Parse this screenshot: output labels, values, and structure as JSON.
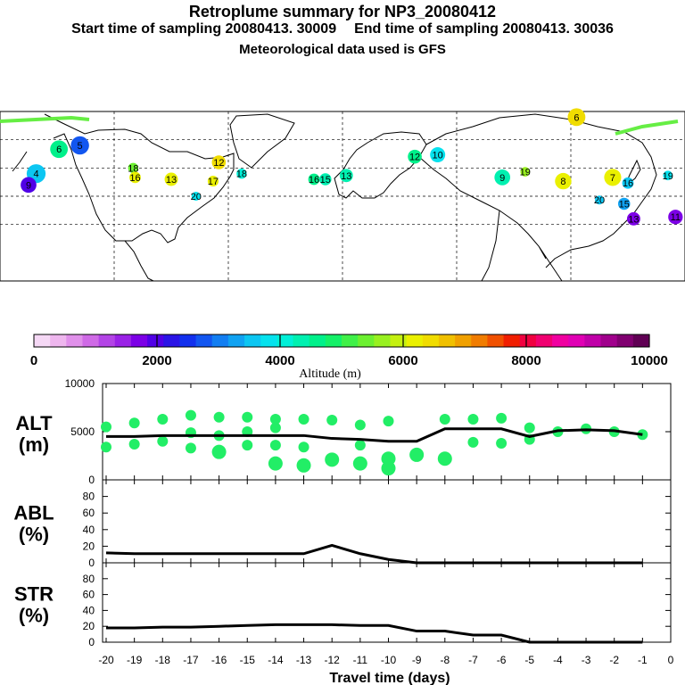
{
  "header": {
    "title": "Retroplume summary for NP3_20080412",
    "start_label": "Start time of sampling 20080413. 30009",
    "end_label": "End time of sampling 20080413. 30036",
    "met_label": "Meteorological data used is GFS"
  },
  "colorbar": {
    "colors": [
      "#f5d8f5",
      "#eeb6ee",
      "#e090ea",
      "#cf6ae6",
      "#b344e6",
      "#9a22e6",
      "#7c00e6",
      "#5000e6",
      "#2a14e6",
      "#1230ee",
      "#1256f0",
      "#127ef2",
      "#10a2f2",
      "#0cc6f2",
      "#06e2ee",
      "#00f0d8",
      "#00f0b0",
      "#00f08a",
      "#14f068",
      "#40f048",
      "#6cf030",
      "#98f020",
      "#c4f010",
      "#eaf000",
      "#f0dc00",
      "#f0c000",
      "#f0a000",
      "#f07c00",
      "#f05000",
      "#f01e00",
      "#f00040",
      "#f00070",
      "#f000a0",
      "#e000b4",
      "#c000a8",
      "#a0008c",
      "#800070",
      "#600054"
    ],
    "ticks": [
      0,
      2000,
      4000,
      6000,
      8000,
      10000
    ],
    "label": "Altitude (m)"
  },
  "map": {
    "labels": [
      {
        "text": "6",
        "lon": -149,
        "lat": 70
      },
      {
        "text": "5",
        "lon": -138,
        "lat": 72
      },
      {
        "text": "4",
        "lon": -161,
        "lat": 57
      },
      {
        "text": "9",
        "lon": -165,
        "lat": 51
      },
      {
        "text": "18",
        "lon": -110,
        "lat": 60
      },
      {
        "text": "16",
        "lon": -109,
        "lat": 55
      },
      {
        "text": "13",
        "lon": -90,
        "lat": 54
      },
      {
        "text": "12",
        "lon": -65,
        "lat": 63
      },
      {
        "text": "17",
        "lon": -68,
        "lat": 53
      },
      {
        "text": "20",
        "lon": -77,
        "lat": 45
      },
      {
        "text": "18",
        "lon": -53,
        "lat": 57
      },
      {
        "text": "16",
        "lon": -15,
        "lat": 54
      },
      {
        "text": "15",
        "lon": -9,
        "lat": 54
      },
      {
        "text": "13",
        "lon": 2,
        "lat": 56
      },
      {
        "text": "12",
        "lon": 38,
        "lat": 66
      },
      {
        "text": "10",
        "lon": 50,
        "lat": 67
      },
      {
        "text": "9",
        "lon": 84,
        "lat": 55
      },
      {
        "text": "19",
        "lon": 96,
        "lat": 58
      },
      {
        "text": "8",
        "lon": 116,
        "lat": 53
      },
      {
        "text": "6",
        "lon": 123,
        "lat": 87
      },
      {
        "text": "7",
        "lon": 142,
        "lat": 55
      },
      {
        "text": "20",
        "lon": 135,
        "lat": 43
      },
      {
        "text": "16",
        "lon": 150,
        "lat": 52
      },
      {
        "text": "19",
        "lon": 171,
        "lat": 56
      },
      {
        "text": "15",
        "lon": 148,
        "lat": 41
      },
      {
        "text": "13",
        "lon": 153,
        "lat": 33
      },
      {
        "text": "11",
        "lon": 175,
        "lat": 34
      }
    ],
    "continents": "North America, Greenland, Europe, Asia"
  },
  "chart_data": [
    {
      "type": "line",
      "panel": "ALT",
      "ylabel": "ALT (m)",
      "ylim": [
        0,
        10000
      ],
      "yticks": [
        0,
        5000,
        10000
      ],
      "x": [
        -20,
        -19,
        -18,
        -17,
        -16,
        -15,
        -14,
        -13,
        -12,
        -11,
        -10,
        -9,
        -8,
        -7,
        -6,
        -5,
        -4,
        -3,
        -2,
        -1
      ],
      "series": [
        {
          "name": "median altitude",
          "values": [
            4500,
            4500,
            4600,
            4600,
            4600,
            4600,
            4600,
            4600,
            4300,
            4200,
            4000,
            4000,
            5300,
            5300,
            5300,
            4500,
            5100,
            5200,
            5100,
            4700
          ]
        }
      ],
      "scatter": [
        {
          "x": -20,
          "y": 3400
        },
        {
          "x": -20,
          "y": 5500
        },
        {
          "x": -19,
          "y": 3700
        },
        {
          "x": -19,
          "y": 5900
        },
        {
          "x": -18,
          "y": 4000
        },
        {
          "x": -18,
          "y": 6300
        },
        {
          "x": -17,
          "y": 3300
        },
        {
          "x": -17,
          "y": 4900
        },
        {
          "x": -17,
          "y": 6700
        },
        {
          "x": -16,
          "y": 2900
        },
        {
          "x": -16,
          "y": 4600
        },
        {
          "x": -16,
          "y": 6500
        },
        {
          "x": -15,
          "y": 3600
        },
        {
          "x": -15,
          "y": 5000
        },
        {
          "x": -15,
          "y": 6500
        },
        {
          "x": -14,
          "y": 1700
        },
        {
          "x": -14,
          "y": 3600
        },
        {
          "x": -14,
          "y": 5400
        },
        {
          "x": -14,
          "y": 6300
        },
        {
          "x": -13,
          "y": 1500
        },
        {
          "x": -13,
          "y": 3400
        },
        {
          "x": -13,
          "y": 6300
        },
        {
          "x": -12,
          "y": 2100
        },
        {
          "x": -12,
          "y": 6200
        },
        {
          "x": -11,
          "y": 1700
        },
        {
          "x": -11,
          "y": 3600
        },
        {
          "x": -11,
          "y": 5700
        },
        {
          "x": -10,
          "y": 1200
        },
        {
          "x": -10,
          "y": 2200
        },
        {
          "x": -10,
          "y": 6100
        },
        {
          "x": -9,
          "y": 2600
        },
        {
          "x": -8,
          "y": 2200
        },
        {
          "x": -8,
          "y": 6300
        },
        {
          "x": -7,
          "y": 3900
        },
        {
          "x": -7,
          "y": 6300
        },
        {
          "x": -6,
          "y": 3800
        },
        {
          "x": -6,
          "y": 6400
        },
        {
          "x": -5,
          "y": 4200
        },
        {
          "x": -5,
          "y": 5400
        },
        {
          "x": -4,
          "y": 5000
        },
        {
          "x": -3,
          "y": 5300
        },
        {
          "x": -2,
          "y": 5000
        },
        {
          "x": -1,
          "y": 4700
        }
      ]
    },
    {
      "type": "line",
      "panel": "ABL",
      "ylabel": "ABL (%)",
      "ylim": [
        0,
        100
      ],
      "yticks": [
        0,
        20,
        40,
        60,
        80
      ],
      "x": [
        -20,
        -19,
        -18,
        -17,
        -16,
        -15,
        -14,
        -13,
        -12,
        -11,
        -10,
        -9,
        -8,
        -7,
        -6,
        -5,
        -4,
        -3,
        -2,
        -1
      ],
      "series": [
        {
          "name": "fraction in ABL",
          "values": [
            12,
            11,
            11,
            11,
            11,
            11,
            11,
            11,
            21,
            11,
            4,
            0,
            0,
            0,
            0,
            0,
            0,
            0,
            0,
            0
          ]
        }
      ]
    },
    {
      "type": "line",
      "panel": "STR",
      "ylabel": "STR (%)",
      "ylim": [
        0,
        100
      ],
      "yticks": [
        0,
        20,
        40,
        60,
        80
      ],
      "x": [
        -20,
        -19,
        -18,
        -17,
        -16,
        -15,
        -14,
        -13,
        -12,
        -11,
        -10,
        -9,
        -8,
        -7,
        -6,
        -5,
        -4,
        -3,
        -2,
        -1
      ],
      "series": [
        {
          "name": "fraction in stratosphere",
          "values": [
            18,
            18,
            19,
            19,
            20,
            21,
            22,
            22,
            22,
            21,
            21,
            14,
            14,
            9,
            9,
            0,
            0,
            0,
            0,
            0
          ]
        }
      ],
      "xlabel": "Travel time (days)",
      "xticks": [
        -20,
        -19,
        -18,
        -17,
        -16,
        -15,
        -14,
        -13,
        -12,
        -11,
        -10,
        -9,
        -8,
        -7,
        -6,
        -5,
        -4,
        -3,
        -2,
        -1,
        0
      ]
    }
  ]
}
